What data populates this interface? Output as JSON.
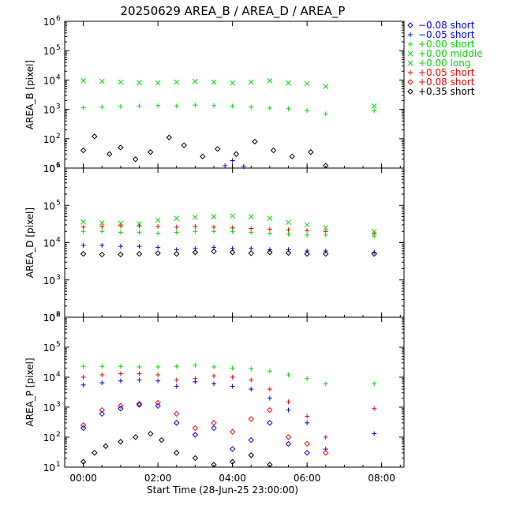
{
  "chart_data": {
    "type": "scatter",
    "title": "20250629 AREA_B / AREA_D / AREA_P",
    "xlabel": "Start Time (28-Jun-25 23:00:00)",
    "xlim": [
      -0.5,
      8.6
    ],
    "xticks": [
      "00:00",
      "02:00",
      "04:00",
      "06:00",
      "08:00"
    ],
    "yscale": "log",
    "legend_position": "right",
    "legend": [
      {
        "label": "−0.08 short",
        "marker": "diamond",
        "color": "#0000ff"
      },
      {
        "label": "−0.05 short",
        "marker": "plus",
        "color": "#0000ff"
      },
      {
        "label": "+0.00 short",
        "marker": "plus",
        "color": "#00dd00"
      },
      {
        "label": "+0.00 middle",
        "marker": "x",
        "color": "#00dd00"
      },
      {
        "label": "+0.00 long",
        "marker": "x",
        "color": "#00dd00"
      },
      {
        "label": "+0.05 short",
        "marker": "plus",
        "color": "#ff0000"
      },
      {
        "label": "+0.08 short",
        "marker": "diamond",
        "color": "#ff0000"
      },
      {
        "label": "+0.35 short",
        "marker": "diamond",
        "color": "#000000"
      }
    ],
    "panels": [
      {
        "ylabel": "AREA_B [pixel]",
        "ylim": [
          10,
          1000000
        ],
        "yticks": [
          {
            "b": "10",
            "e": "1"
          },
          {
            "b": "10",
            "e": "2"
          },
          {
            "b": "10",
            "e": "3"
          },
          {
            "b": "10",
            "e": "4"
          },
          {
            "b": "10",
            "e": "5"
          },
          {
            "b": "10",
            "e": "6"
          }
        ],
        "series": [
          {
            "name": "+0.00 middle",
            "marker": "x",
            "color": "#00dd00",
            "x": [
              0.0,
              0.5,
              1.0,
              1.5,
              2.0,
              2.5,
              3.0,
              3.5,
              4.0,
              4.5,
              5.0,
              5.5,
              6.0,
              6.5,
              7.8
            ],
            "y": [
              9500,
              9000,
              8500,
              8200,
              8000,
              8500,
              9000,
              8500,
              8000,
              8500,
              9500,
              8000,
              7500,
              6000,
              1300
            ]
          },
          {
            "name": "+0.00 short",
            "marker": "plus",
            "color": "#00dd00",
            "x": [
              0.0,
              0.5,
              1.0,
              1.5,
              2.0,
              2.5,
              3.0,
              3.5,
              4.0,
              4.5,
              5.0,
              5.5,
              6.0,
              6.5,
              7.8
            ],
            "y": [
              1150,
              1200,
              1250,
              1300,
              1350,
              1300,
              1400,
              1350,
              1300,
              1200,
              1100,
              1050,
              900,
              700,
              900
            ]
          },
          {
            "name": "+0.35 short",
            "marker": "diamond",
            "color": "#000000",
            "x": [
              0.0,
              0.3,
              0.7,
              1.0,
              1.4,
              1.8,
              2.3,
              2.7,
              3.2,
              3.6,
              4.1,
              4.6,
              5.1,
              5.6,
              6.1,
              6.5
            ],
            "y": [
              40,
              120,
              30,
              50,
              20,
              35,
              110,
              60,
              25,
              45,
              30,
              80,
              40,
              25,
              35,
              12
            ]
          },
          {
            "name": "−0.05 short",
            "marker": "plus",
            "color": "#0000ff",
            "x": [
              3.8,
              4.0,
              4.3
            ],
            "y": [
              12,
              18,
              11
            ]
          }
        ]
      },
      {
        "ylabel": "AREA_D [pixel]",
        "ylim": [
          100,
          1000000
        ],
        "yticks": [
          {
            "b": "10",
            "e": "2"
          },
          {
            "b": "10",
            "e": "3"
          },
          {
            "b": "10",
            "e": "4"
          },
          {
            "b": "10",
            "e": "5"
          },
          {
            "b": "10",
            "e": "6"
          }
        ],
        "series": [
          {
            "name": "+0.00 middle",
            "marker": "x",
            "color": "#00dd00",
            "x": [
              0.0,
              0.5,
              1.0,
              1.5,
              2.0,
              2.5,
              3.0,
              3.5,
              4.0,
              4.5,
              5.0,
              5.5,
              6.0,
              6.5,
              7.8
            ],
            "y": [
              36000,
              34000,
              33000,
              32000,
              40000,
              45000,
              48000,
              50000,
              52000,
              50000,
              45000,
              35000,
              30000,
              25000,
              20000
            ]
          },
          {
            "name": "+0.05 short",
            "marker": "plus",
            "color": "#ff0000",
            "x": [
              0.0,
              0.5,
              1.0,
              1.5,
              2.0,
              2.5,
              3.0,
              3.5,
              4.0,
              4.5,
              5.0,
              5.5,
              6.0,
              6.5,
              7.8
            ],
            "y": [
              26000,
              27000,
              28000,
              28000,
              27000,
              26000,
              27000,
              26000,
              25000,
              24000,
              23000,
              22000,
              21000,
              20000,
              17000
            ]
          },
          {
            "name": "+0.00 short",
            "marker": "plus",
            "color": "#00dd00",
            "x": [
              0.0,
              0.5,
              1.0,
              1.5,
              2.0,
              2.5,
              3.0,
              3.5,
              4.0,
              4.5,
              5.0,
              5.5,
              6.0,
              6.5,
              7.8
            ],
            "y": [
              20000,
              20000,
              19000,
              19000,
              18000,
              19000,
              20000,
              20000,
              20000,
              19000,
              18000,
              17000,
              16000,
              16000,
              15000
            ]
          },
          {
            "name": "−0.05 short",
            "marker": "plus",
            "color": "#0000ff",
            "x": [
              0.0,
              0.5,
              1.0,
              1.5,
              2.0,
              2.5,
              3.0,
              3.5,
              4.0,
              4.5,
              5.0,
              5.5,
              6.0,
              6.5,
              7.8
            ],
            "y": [
              8500,
              8500,
              8000,
              8000,
              7500,
              6500,
              7000,
              7500,
              7000,
              7000,
              6500,
              6500,
              6000,
              6000,
              5500
            ]
          },
          {
            "name": "+0.35 short",
            "marker": "diamond",
            "color": "#000000",
            "x": [
              0.0,
              0.5,
              1.0,
              1.5,
              2.0,
              2.5,
              3.0,
              3.5,
              4.0,
              4.5,
              5.0,
              5.5,
              6.0,
              6.5,
              7.8
            ],
            "y": [
              5000,
              4800,
              4800,
              5000,
              5200,
              5000,
              5500,
              5800,
              5500,
              5200,
              5500,
              5300,
              5000,
              5000,
              5000
            ]
          }
        ]
      },
      {
        "ylabel": "AREA_P [pixel]",
        "ylim": [
          10,
          1000000
        ],
        "yticks": [
          {
            "b": "10",
            "e": "1"
          },
          {
            "b": "10",
            "e": "2"
          },
          {
            "b": "10",
            "e": "3"
          },
          {
            "b": "10",
            "e": "4"
          },
          {
            "b": "10",
            "e": "5"
          },
          {
            "b": "10",
            "e": "6"
          }
        ],
        "series": [
          {
            "name": "+0.00 short",
            "marker": "plus",
            "color": "#00dd00",
            "x": [
              0.0,
              0.5,
              1.0,
              1.5,
              2.0,
              2.5,
              3.0,
              3.5,
              4.0,
              4.5,
              5.0,
              5.5,
              6.0,
              6.5,
              7.8
            ],
            "y": [
              23000,
              23000,
              23000,
              22000,
              22000,
              23000,
              25000,
              22000,
              20000,
              19000,
              16000,
              12000,
              9000,
              6000,
              6000
            ]
          },
          {
            "name": "+0.05 short",
            "marker": "plus",
            "color": "#ff0000",
            "x": [
              0.0,
              0.5,
              1.0,
              1.5,
              2.0,
              2.5,
              3.0,
              3.5,
              4.0,
              4.5,
              5.0,
              5.5,
              6.0,
              6.5,
              7.8
            ],
            "y": [
              10000,
              12000,
              13000,
              13000,
              12000,
              8000,
              9000,
              11000,
              10000,
              8000,
              4000,
              1500,
              500,
              100,
              900
            ]
          },
          {
            "name": "−0.05 short",
            "marker": "plus",
            "color": "#0000ff",
            "x": [
              0.0,
              0.5,
              1.0,
              1.5,
              2.0,
              2.5,
              3.0,
              3.5,
              4.0,
              4.5,
              5.0,
              5.5,
              6.0,
              6.5,
              7.8
            ],
            "y": [
              5500,
              6500,
              7500,
              8000,
              7500,
              5000,
              7000,
              6000,
              5000,
              4000,
              2000,
              800,
              300,
              40,
              130
            ]
          },
          {
            "name": "+0.08 short",
            "marker": "diamond",
            "color": "#ff0000",
            "x": [
              0.0,
              0.5,
              1.0,
              1.5,
              2.0,
              2.5,
              3.0,
              3.5,
              4.0,
              4.5,
              5.0,
              5.5,
              6.0,
              6.5
            ],
            "y": [
              250,
              800,
              1100,
              1300,
              1400,
              600,
              200,
              300,
              150,
              400,
              800,
              100,
              60,
              30
            ]
          },
          {
            "name": "−0.08 short",
            "marker": "diamond",
            "color": "#0000ff",
            "x": [
              0.0,
              0.5,
              1.0,
              1.5,
              2.0,
              2.5,
              3.0,
              3.5,
              4.0,
              4.5,
              5.0,
              5.5,
              6.0
            ],
            "y": [
              200,
              600,
              900,
              1200,
              1100,
              300,
              120,
              200,
              40,
              80,
              300,
              60,
              30
            ]
          },
          {
            "name": "+0.35 short",
            "marker": "diamond",
            "color": "#000000",
            "x": [
              0.0,
              0.3,
              0.6,
              1.0,
              1.4,
              1.8,
              2.1,
              2.5,
              3.0,
              3.5,
              4.0,
              4.5,
              5.0
            ],
            "y": [
              15,
              30,
              50,
              70,
              100,
              130,
              80,
              30,
              20,
              12,
              15,
              25,
              12
            ]
          }
        ]
      }
    ]
  }
}
